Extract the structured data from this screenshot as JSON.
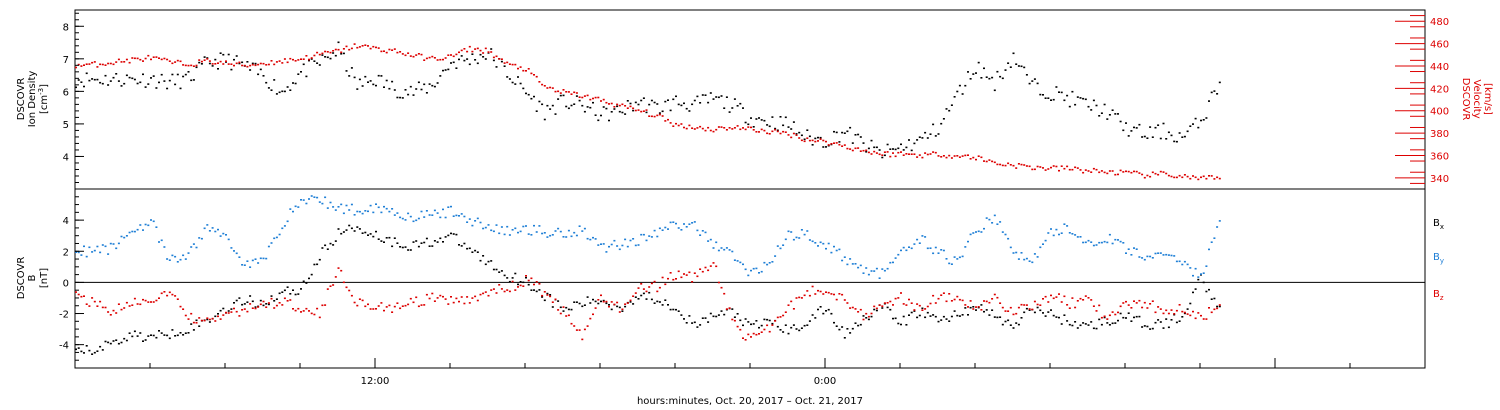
{
  "chart_data": [
    {
      "type": "scatter",
      "ylabel": "DSCOVR",
      "ylabel2": "Ion Density",
      "yunit": "[cm",
      "yunit_sup": "-3",
      "yunit_end": "]",
      "y2label": "DSCOVR",
      "y2label2": "Velocity",
      "y2unit": "[km/s]",
      "xlim": [
        0,
        36
      ],
      "ylim": [
        3,
        8.5
      ],
      "y2lim": [
        330,
        490
      ],
      "yticks": [
        4,
        5,
        6,
        7,
        8
      ],
      "y2ticks": [
        340,
        360,
        380,
        400,
        420,
        440,
        460,
        480
      ],
      "series": [
        {
          "color": "#000000",
          "x": [
            0.0,
            0.5,
            1.0,
            1.5,
            2.0,
            2.5,
            3.0,
            3.5,
            4.0,
            4.5,
            5.0,
            5.5,
            6.0,
            6.5,
            7.0,
            7.5,
            8.0,
            8.5,
            9.0,
            9.5,
            10.0,
            10.5,
            11.0,
            11.5,
            12.0,
            12.5,
            13.0,
            13.5,
            14.0,
            14.5,
            15.0,
            15.5,
            16.0,
            16.5,
            17.0,
            17.5,
            18.0,
            18.5,
            19.0,
            19.5,
            20.0,
            20.5,
            21.0,
            21.5,
            22.0,
            22.5,
            23.0,
            23.5,
            24.0,
            24.5,
            25.0,
            25.5,
            26.0,
            26.5,
            27.0,
            27.5,
            28.0,
            28.5,
            29.0,
            29.5,
            30.0,
            30.5
          ],
          "y": [
            6.4,
            6.4,
            6.4,
            6.4,
            6.4,
            6.3,
            6.4,
            6.9,
            7.0,
            6.8,
            6.5,
            6.0,
            6.6,
            6.9,
            7.3,
            6.2,
            6.4,
            6.1,
            6.0,
            6.2,
            6.9,
            7.0,
            7.2,
            6.6,
            6.0,
            5.4,
            5.7,
            5.6,
            5.3,
            5.4,
            5.7,
            5.5,
            5.7,
            5.6,
            5.8,
            5.6,
            5.2,
            5.1,
            5.0,
            4.6,
            4.5,
            4.8,
            4.4,
            4.1,
            4.3,
            4.5,
            4.9,
            5.9,
            6.8,
            6.3,
            7.1,
            6.2,
            6.0,
            5.8,
            5.6,
            5.4,
            4.9,
            4.7,
            4.8,
            4.6,
            5.1,
            6.3
          ]
        },
        {
          "color": "#dd0000",
          "x": [
            0.0,
            0.5,
            1.0,
            1.5,
            2.0,
            2.5,
            3.0,
            3.5,
            4.0,
            4.5,
            5.0,
            5.5,
            6.0,
            6.5,
            7.0,
            7.5,
            8.0,
            8.5,
            9.0,
            9.5,
            10.0,
            10.5,
            11.0,
            11.5,
            12.0,
            12.5,
            13.0,
            13.5,
            14.0,
            14.5,
            15.0,
            15.5,
            16.0,
            16.5,
            17.0,
            17.5,
            18.0,
            18.5,
            19.0,
            19.5,
            20.0,
            20.5,
            21.0,
            21.5,
            22.0,
            22.5,
            23.0,
            23.5,
            24.0,
            24.5,
            25.0,
            25.5,
            26.0,
            26.5,
            27.0,
            27.5,
            28.0,
            28.5,
            29.0,
            29.5,
            30.0,
            30.5
          ],
          "y": [
            441,
            442,
            444,
            446,
            448,
            444,
            442,
            445,
            443,
            441,
            443,
            445,
            447,
            451,
            454,
            459,
            456,
            454,
            450,
            447,
            449,
            456,
            454,
            442,
            438,
            422,
            417,
            414,
            410,
            405,
            401,
            396,
            388,
            386,
            384,
            386,
            384,
            382,
            380,
            375,
            373,
            369,
            365,
            362,
            362,
            361,
            362,
            360,
            359,
            354,
            352,
            350,
            349,
            349,
            347,
            346,
            345,
            343,
            344,
            342,
            340,
            340
          ]
        }
      ]
    },
    {
      "type": "scatter",
      "ylabel": "DSCOVR",
      "ylabel2": "B",
      "yunit": "[nT]",
      "xlim": [
        0,
        36
      ],
      "ylim": [
        -5.5,
        6
      ],
      "yticks": [
        -4,
        -2,
        0,
        2,
        4
      ],
      "xlabel": "hours:minutes, Oct. 20, 2017 – Oct. 21, 2017",
      "xticks": [
        {
          "value": 8,
          "label": "12:00"
        },
        {
          "value": 20,
          "label": "0:00"
        }
      ],
      "legend_position": "right",
      "series": [
        {
          "name": "B",
          "sub": "x",
          "color": "#000000",
          "x": [
            0.0,
            0.5,
            1.0,
            1.5,
            2.0,
            2.5,
            3.0,
            3.5,
            4.0,
            4.5,
            5.0,
            5.5,
            6.0,
            6.5,
            7.0,
            7.5,
            8.0,
            8.5,
            9.0,
            9.5,
            10.0,
            10.5,
            11.0,
            11.5,
            12.0,
            12.5,
            13.0,
            13.5,
            14.0,
            14.5,
            15.0,
            15.5,
            16.0,
            16.5,
            17.0,
            17.5,
            18.0,
            18.5,
            19.0,
            19.5,
            20.0,
            20.5,
            21.0,
            21.5,
            22.0,
            22.5,
            23.0,
            23.5,
            24.0,
            24.5,
            25.0,
            25.5,
            26.0,
            26.5,
            27.0,
            27.5,
            28.0,
            28.5,
            29.0,
            29.5,
            30.0,
            30.5
          ],
          "y": [
            -4.4,
            -4.3,
            -3.8,
            -3.3,
            -3.5,
            -3.2,
            -2.9,
            -2.4,
            -1.6,
            -1.1,
            -1.3,
            -0.6,
            -0.4,
            1.7,
            3.2,
            3.6,
            3.1,
            2.6,
            2.4,
            2.7,
            3.0,
            2.2,
            1.3,
            0.5,
            0.1,
            -0.8,
            -1.7,
            -1.3,
            -1.1,
            -1.6,
            -0.8,
            -1.0,
            -1.5,
            -2.8,
            -2.1,
            -1.8,
            -2.9,
            -2.4,
            -3.1,
            -2.5,
            -1.6,
            -3.3,
            -2.2,
            -1.5,
            -2.6,
            -1.8,
            -2.4,
            -2.0,
            -1.5,
            -2.1,
            -2.8,
            -1.6,
            -2.0,
            -2.5,
            -2.8,
            -2.4,
            -2.2,
            -2.6,
            -2.7,
            -2.1,
            0.3,
            -1.5
          ]
        },
        {
          "name": "B",
          "sub": "y",
          "color": "#1f7fd6",
          "x": [
            0.0,
            0.5,
            1.0,
            1.5,
            2.0,
            2.5,
            3.0,
            3.5,
            4.0,
            4.5,
            5.0,
            5.5,
            6.0,
            6.5,
            7.0,
            7.5,
            8.0,
            8.5,
            9.0,
            9.5,
            10.0,
            10.5,
            11.0,
            11.5,
            12.0,
            12.5,
            13.0,
            13.5,
            14.0,
            14.5,
            15.0,
            15.5,
            16.0,
            16.5,
            17.0,
            17.5,
            18.0,
            18.5,
            19.0,
            19.5,
            20.0,
            20.5,
            21.0,
            21.5,
            22.0,
            22.5,
            23.0,
            23.5,
            24.0,
            24.5,
            25.0,
            25.5,
            26.0,
            26.5,
            27.0,
            27.5,
            28.0,
            28.5,
            29.0,
            29.5,
            30.0,
            30.5
          ],
          "y": [
            2.1,
            2.0,
            2.3,
            3.4,
            4.0,
            1.4,
            1.8,
            3.6,
            3.0,
            1.2,
            1.4,
            3.8,
            5.3,
            5.4,
            4.8,
            4.7,
            4.9,
            4.6,
            4.2,
            4.4,
            4.6,
            4.1,
            3.6,
            3.3,
            3.5,
            3.3,
            3.2,
            3.5,
            2.3,
            2.5,
            2.8,
            3.2,
            3.8,
            3.6,
            2.6,
            1.8,
            0.6,
            1.4,
            3.0,
            3.2,
            2.4,
            1.6,
            0.9,
            0.6,
            1.8,
            2.9,
            2.0,
            1.3,
            3.4,
            4.2,
            2.1,
            1.3,
            3.3,
            3.5,
            2.6,
            2.9,
            2.2,
            1.8,
            1.6,
            1.5,
            0.3,
            4.0
          ]
        },
        {
          "name": "B",
          "sub": "z",
          "color": "#dd0000",
          "x": [
            0.0,
            0.5,
            1.0,
            1.5,
            2.0,
            2.5,
            3.0,
            3.5,
            4.0,
            4.5,
            5.0,
            5.5,
            6.0,
            6.5,
            7.0,
            7.5,
            8.0,
            8.5,
            9.0,
            9.5,
            10.0,
            10.5,
            11.0,
            11.5,
            12.0,
            12.5,
            13.0,
            13.5,
            14.0,
            14.5,
            15.0,
            15.5,
            16.0,
            16.5,
            17.0,
            17.5,
            18.0,
            18.5,
            19.0,
            19.5,
            20.0,
            20.5,
            21.0,
            21.5,
            22.0,
            22.5,
            23.0,
            23.5,
            24.0,
            24.5,
            25.0,
            25.5,
            26.0,
            26.5,
            27.0,
            27.5,
            28.0,
            28.5,
            29.0,
            29.5,
            30.0,
            30.5
          ],
          "y": [
            -0.8,
            -1.3,
            -1.8,
            -1.4,
            -1.0,
            -0.7,
            -2.1,
            -2.6,
            -2.0,
            -1.7,
            -1.4,
            -1.2,
            -1.5,
            -1.9,
            0.9,
            -1.2,
            -1.5,
            -1.6,
            -1.3,
            -1.0,
            -1.2,
            -1.0,
            -0.5,
            -0.4,
            0.2,
            -0.6,
            -1.8,
            -3.6,
            -0.9,
            -1.6,
            -0.4,
            -0.2,
            0.6,
            0.3,
            1.5,
            -2.5,
            -3.7,
            -2.8,
            -1.6,
            -0.6,
            -0.4,
            -1.0,
            -2.0,
            -1.6,
            -0.9,
            -1.7,
            -0.8,
            -1.2,
            -1.6,
            -1.0,
            -1.8,
            -1.4,
            -0.8,
            -1.3,
            -1.1,
            -2.2,
            -1.5,
            -1.2,
            -1.8,
            -1.5,
            -2.2,
            -1.4
          ]
        }
      ]
    }
  ]
}
